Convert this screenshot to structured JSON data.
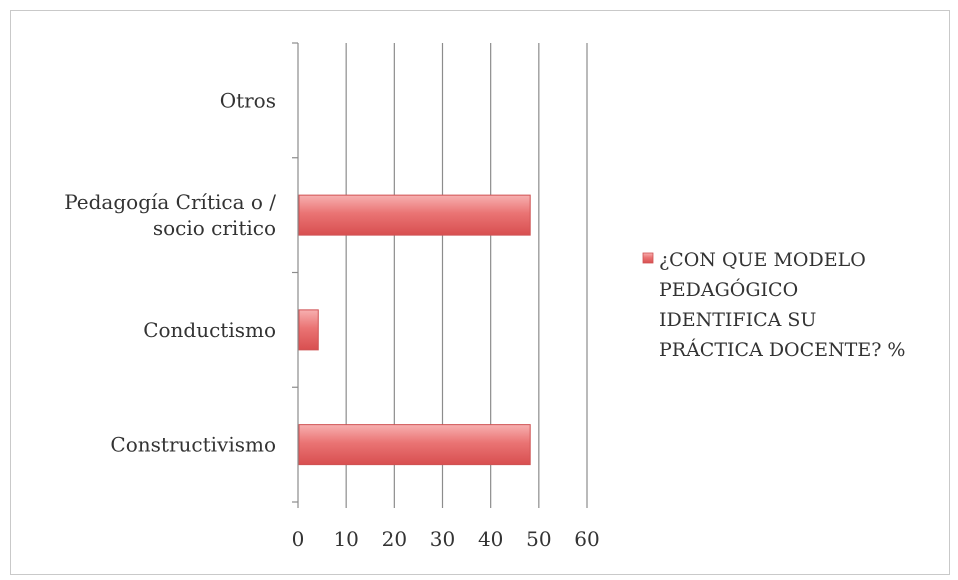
{
  "chart_data": {
    "type": "bar",
    "orientation": "horizontal",
    "categories": [
      "Constructivismo",
      "Conductismo",
      "Pedagogía Crítica o / socio critico",
      "Otros"
    ],
    "category_lines": [
      [
        "Constructivismo"
      ],
      [
        "Conductismo"
      ],
      [
        "Pedagogía Crítica o /",
        "socio critico"
      ],
      [
        "Otros"
      ]
    ],
    "series": [
      {
        "name": "¿CON QUE MODELO PEDAGÓGICO IDENTIFICA SU PRÁCTICA DOCENTE? %",
        "values": [
          48,
          4,
          48,
          0
        ],
        "color": "#e8696a"
      }
    ],
    "legend_lines": [
      "¿CON QUE MODELO",
      "PEDAGÓGICO",
      "IDENTIFICA SU",
      "PRÁCTICA DOCENTE? %"
    ],
    "xlim": [
      0,
      60
    ],
    "xticks": [
      0,
      10,
      20,
      30,
      40,
      50,
      60
    ],
    "grid": "vertical",
    "legend_position": "right",
    "title": "",
    "xlabel": "",
    "ylabel": ""
  }
}
